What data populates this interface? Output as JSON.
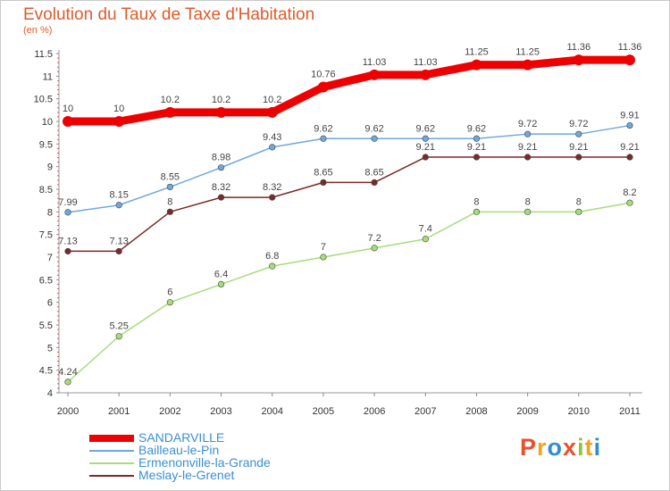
{
  "header": {
    "title": "Evolution du Taux de Taxe d'Habitation",
    "subtitle": "(en %)"
  },
  "logo": {
    "text": "Proxiti",
    "letters": [
      "P",
      "r",
      "o",
      "x",
      "i",
      "t",
      "i"
    ]
  },
  "chart_data": {
    "type": "line",
    "categories": [
      "2000",
      "2001",
      "2002",
      "2003",
      "2004",
      "2005",
      "2006",
      "2007",
      "2008",
      "2009",
      "2010",
      "2011"
    ],
    "ylim": [
      4,
      11.5
    ],
    "yticks": [
      4,
      4.5,
      5,
      5.5,
      6,
      6.5,
      7,
      7.5,
      8,
      8.5,
      9,
      9.5,
      10,
      10.5,
      11,
      11.5
    ],
    "ytick_labels": [
      "4",
      "4.5",
      "5",
      "5.5",
      "6",
      "6.5",
      "7",
      "7.5",
      "8",
      "8.5",
      "9",
      "9.5",
      "10",
      "10.5",
      "11",
      "11.5"
    ],
    "grid": false,
    "legend_position": "bottom-left",
    "series": [
      {
        "name": "SANDARVILLE",
        "color": "#ee0000",
        "values": [
          10,
          10,
          10.2,
          10.2,
          10.2,
          10.76,
          11.03,
          11.03,
          11.25,
          11.25,
          11.36,
          11.36
        ],
        "labels": [
          "10",
          "10",
          "10.2",
          "10.2",
          "10.2",
          "10.76",
          "11.03",
          "11.03",
          "11.25",
          "11.25",
          "11.36",
          "11.36"
        ]
      },
      {
        "name": "Bailleau-le-Pin",
        "color": "#6fa8dc",
        "values": [
          7.99,
          8.15,
          8.55,
          8.98,
          9.43,
          9.62,
          9.62,
          9.62,
          9.62,
          9.72,
          9.72,
          9.91
        ],
        "labels": [
          "7.99",
          "8.15",
          "8.55",
          "8.98",
          "9.43",
          "9.62",
          "9.62",
          "9.62",
          "9.62",
          "9.72",
          "9.72",
          "9.91"
        ]
      },
      {
        "name": "Ermenonville-la-Grande",
        "color": "#a6dd7a",
        "values": [
          4.24,
          5.25,
          6,
          6.4,
          6.8,
          7,
          7.2,
          7.4,
          8,
          8,
          8,
          8.2
        ],
        "labels": [
          "4.24",
          "5.25",
          "6",
          "6.4",
          "6.8",
          "7",
          "7.2",
          "7.4",
          "8",
          "8",
          "8",
          "8.2"
        ]
      },
      {
        "name": "Meslay-le-Grenet",
        "color": "#7a2a2a",
        "values": [
          7.13,
          7.13,
          8,
          8.32,
          8.32,
          8.65,
          8.65,
          9.21,
          9.21,
          9.21,
          9.21,
          9.21
        ],
        "labels": [
          "7.13",
          "7.13",
          "8",
          "8.32",
          "8.32",
          "8.65",
          "8.65",
          "9.21",
          "9.21",
          "9.21",
          "9.21",
          "9.21"
        ]
      }
    ]
  }
}
